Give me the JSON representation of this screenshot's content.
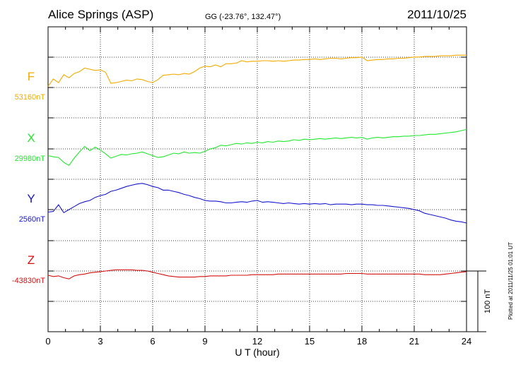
{
  "header": {
    "station": "Alice Springs (ASP)",
    "coords": "GG (-23.76°, 132.47°)",
    "date": "2011/10/25"
  },
  "footer": {
    "plotted": "Plotted at 2011/11/25 01:01 UT"
  },
  "chart_data": {
    "type": "line",
    "xlabel": "U T (hour)",
    "xlim": [
      0,
      24
    ],
    "x_ticks": [
      0,
      3,
      6,
      9,
      12,
      15,
      18,
      21,
      24
    ],
    "x_tick_labels": [
      "0",
      "3",
      "6",
      "9",
      "12",
      "15",
      "18",
      "21",
      "24"
    ],
    "scale_bar": {
      "label": "100 nT",
      "value": 100
    },
    "nt_per_division": 50,
    "grid": true,
    "series": [
      {
        "name": "F",
        "baseline_label": "53160nT",
        "baseline": 53160,
        "color": "#f5aa00",
        "x": [
          0,
          0.3,
          0.6,
          0.9,
          1.2,
          1.5,
          1.8,
          2.1,
          2.4,
          2.7,
          3.0,
          3.3,
          3.6,
          3.9,
          4.2,
          4.5,
          4.8,
          5.1,
          5.4,
          5.7,
          6.0,
          6.3,
          6.6,
          6.9,
          7.2,
          7.5,
          7.8,
          8.1,
          8.4,
          8.7,
          9.0,
          9.3,
          9.6,
          9.9,
          10.2,
          10.5,
          10.8,
          11.1,
          11.4,
          11.7,
          12.0,
          12.3,
          12.6,
          12.9,
          13.2,
          13.5,
          13.8,
          14.1,
          14.4,
          14.7,
          15.0,
          15.3,
          15.6,
          15.9,
          16.2,
          16.5,
          16.8,
          17.1,
          17.4,
          17.7,
          18.0,
          18.3,
          18.6,
          18.9,
          19.2,
          19.5,
          19.8,
          20.1,
          20.4,
          20.7,
          21.0,
          21.3,
          21.6,
          21.9,
          22.2,
          22.5,
          22.8,
          23.1,
          23.4,
          23.7,
          24.0
        ],
        "y": [
          53162,
          53174,
          53168,
          53181,
          53176,
          53183,
          53186,
          53192,
          53190,
          53188,
          53189,
          53185,
          53167,
          53168,
          53170,
          53172,
          53171,
          53174,
          53173,
          53170,
          53168,
          53173,
          53180,
          53181,
          53182,
          53181,
          53183,
          53182,
          53186,
          53192,
          53195,
          53194,
          53197,
          53194,
          53199,
          53199,
          53200,
          53204,
          53202,
          53203,
          53203,
          53204,
          53204,
          53203,
          53204,
          53203,
          53204,
          53205,
          53205,
          53206,
          53206,
          53207,
          53206,
          53207,
          53208,
          53208,
          53207,
          53208,
          53209,
          53209,
          53210,
          53204,
          53205,
          53206,
          53206,
          53207,
          53207,
          53208,
          53208,
          53209,
          53210,
          53210,
          53211,
          53211,
          53211,
          53212,
          53212,
          53212,
          53213,
          53213,
          53213
        ]
      },
      {
        "name": "X",
        "baseline_label": "29980nT",
        "baseline": 29980,
        "color": "#22e82e",
        "x": [
          0,
          0.3,
          0.6,
          0.9,
          1.2,
          1.5,
          1.8,
          2.1,
          2.4,
          2.7,
          3.0,
          3.3,
          3.6,
          3.9,
          4.2,
          4.5,
          4.8,
          5.1,
          5.4,
          5.7,
          6.0,
          6.3,
          6.6,
          6.9,
          7.2,
          7.5,
          7.8,
          8.1,
          8.4,
          8.7,
          9.0,
          9.3,
          9.6,
          9.9,
          10.2,
          10.5,
          10.8,
          11.1,
          11.4,
          11.7,
          12.0,
          12.3,
          12.6,
          12.9,
          13.2,
          13.5,
          13.8,
          14.1,
          14.4,
          14.7,
          15.0,
          15.3,
          15.6,
          15.9,
          16.2,
          16.5,
          16.8,
          17.1,
          17.4,
          17.7,
          18.0,
          18.3,
          18.6,
          18.9,
          19.2,
          19.5,
          19.8,
          20.1,
          20.4,
          20.7,
          21.0,
          21.3,
          21.6,
          21.9,
          22.2,
          22.5,
          22.8,
          23.1,
          23.4,
          23.7,
          24.0
        ],
        "y": [
          29969,
          29967,
          29966,
          29958,
          29953,
          29965,
          29975,
          29984,
          29977,
          29983,
          29978,
          29972,
          29965,
          29968,
          29971,
          29970,
          29972,
          29973,
          29975,
          29972,
          29969,
          29966,
          29967,
          29970,
          29973,
          29972,
          29975,
          29973,
          29974,
          29973,
          29976,
          29980,
          29982,
          29986,
          29985,
          29987,
          29989,
          29988,
          29990,
          29989,
          29991,
          29990,
          29992,
          29991,
          29993,
          29992,
          29993,
          29995,
          29994,
          29996,
          29995,
          29996,
          29997,
          29996,
          29997,
          29998,
          29997,
          29998,
          29999,
          29998,
          29999,
          29996,
          29998,
          29999,
          29998,
          29999,
          30000,
          30000,
          30001,
          30001,
          30002,
          30002,
          30003,
          30004,
          30004,
          30005,
          30006,
          30007,
          30008,
          30010,
          30012
        ]
      },
      {
        "name": "Y",
        "baseline_label": "2560nT",
        "baseline": 2560,
        "color": "#1616cf",
        "x": [
          0,
          0.3,
          0.6,
          0.9,
          1.2,
          1.5,
          1.8,
          2.1,
          2.4,
          2.7,
          3.0,
          3.3,
          3.6,
          3.9,
          4.2,
          4.5,
          4.8,
          5.1,
          5.4,
          5.7,
          6.0,
          6.3,
          6.6,
          6.9,
          7.2,
          7.5,
          7.8,
          8.1,
          8.4,
          8.7,
          9.0,
          9.3,
          9.6,
          9.9,
          10.2,
          10.5,
          10.8,
          11.1,
          11.4,
          11.7,
          12.0,
          12.3,
          12.6,
          12.9,
          13.2,
          13.5,
          13.8,
          14.1,
          14.4,
          14.7,
          15.0,
          15.3,
          15.6,
          15.9,
          16.2,
          16.5,
          16.8,
          17.1,
          17.4,
          17.7,
          18.0,
          18.3,
          18.6,
          18.9,
          19.2,
          19.5,
          19.8,
          20.1,
          20.4,
          20.7,
          21.0,
          21.3,
          21.6,
          21.9,
          22.2,
          22.5,
          22.8,
          23.1,
          23.4,
          23.7,
          24.0
        ],
        "y": [
          2556,
          2557,
          2568,
          2555,
          2560,
          2565,
          2570,
          2573,
          2575,
          2580,
          2583,
          2585,
          2590,
          2592,
          2595,
          2598,
          2600,
          2602,
          2603,
          2601,
          2598,
          2596,
          2592,
          2592,
          2590,
          2588,
          2585,
          2583,
          2580,
          2578,
          2575,
          2574,
          2574,
          2573,
          2571,
          2571,
          2572,
          2573,
          2572,
          2574,
          2575,
          2572,
          2573,
          2572,
          2571,
          2570,
          2571,
          2570,
          2569,
          2570,
          2569,
          2570,
          2569,
          2570,
          2568,
          2569,
          2569,
          2569,
          2568,
          2569,
          2569,
          2568,
          2568,
          2567,
          2567,
          2566,
          2565,
          2564,
          2563,
          2562,
          2560,
          2558,
          2554,
          2552,
          2550,
          2548,
          2546,
          2543,
          2541,
          2540,
          2538
        ]
      },
      {
        "name": "Z",
        "baseline_label": "-43830nT",
        "baseline": -43830,
        "color": "#d40f0f",
        "x": [
          0,
          0.3,
          0.6,
          0.9,
          1.2,
          1.5,
          1.8,
          2.1,
          2.4,
          2.7,
          3.0,
          3.3,
          3.6,
          3.9,
          4.2,
          4.5,
          4.8,
          5.1,
          5.4,
          5.7,
          6.0,
          6.3,
          6.6,
          6.9,
          7.2,
          7.5,
          7.8,
          8.1,
          8.4,
          8.7,
          9.0,
          9.3,
          9.6,
          9.9,
          10.2,
          10.5,
          10.8,
          11.1,
          11.4,
          11.7,
          12.0,
          12.3,
          12.6,
          12.9,
          13.2,
          13.5,
          13.8,
          14.1,
          14.4,
          14.7,
          15.0,
          15.3,
          15.6,
          15.9,
          16.2,
          16.5,
          16.8,
          17.1,
          17.4,
          17.7,
          18.0,
          18.3,
          18.6,
          18.9,
          19.2,
          19.5,
          19.8,
          20.1,
          20.4,
          20.7,
          21.0,
          21.3,
          21.6,
          21.9,
          22.2,
          22.5,
          22.8,
          23.1,
          23.4,
          23.7,
          24.0
        ],
        "y": [
          -43837,
          -43839,
          -43838,
          -43841,
          -43843,
          -43838,
          -43836,
          -43835,
          -43833,
          -43832,
          -43831,
          -43830,
          -43829,
          -43828,
          -43828,
          -43828,
          -43828,
          -43829,
          -43829,
          -43830,
          -43832,
          -43834,
          -43836,
          -43838,
          -43839,
          -43840,
          -43840,
          -43840,
          -43840,
          -43839,
          -43839,
          -43838,
          -43838,
          -43838,
          -43838,
          -43837,
          -43837,
          -43837,
          -43837,
          -43836,
          -43836,
          -43836,
          -43836,
          -43836,
          -43835,
          -43835,
          -43835,
          -43835,
          -43835,
          -43835,
          -43835,
          -43835,
          -43835,
          -43835,
          -43835,
          -43835,
          -43835,
          -43834,
          -43834,
          -43834,
          -43834,
          -43835,
          -43835,
          -43835,
          -43835,
          -43835,
          -43835,
          -43835,
          -43835,
          -43835,
          -43835,
          -43835,
          -43836,
          -43836,
          -43836,
          -43836,
          -43835,
          -43834,
          -43833,
          -43832,
          -43831
        ]
      }
    ]
  }
}
